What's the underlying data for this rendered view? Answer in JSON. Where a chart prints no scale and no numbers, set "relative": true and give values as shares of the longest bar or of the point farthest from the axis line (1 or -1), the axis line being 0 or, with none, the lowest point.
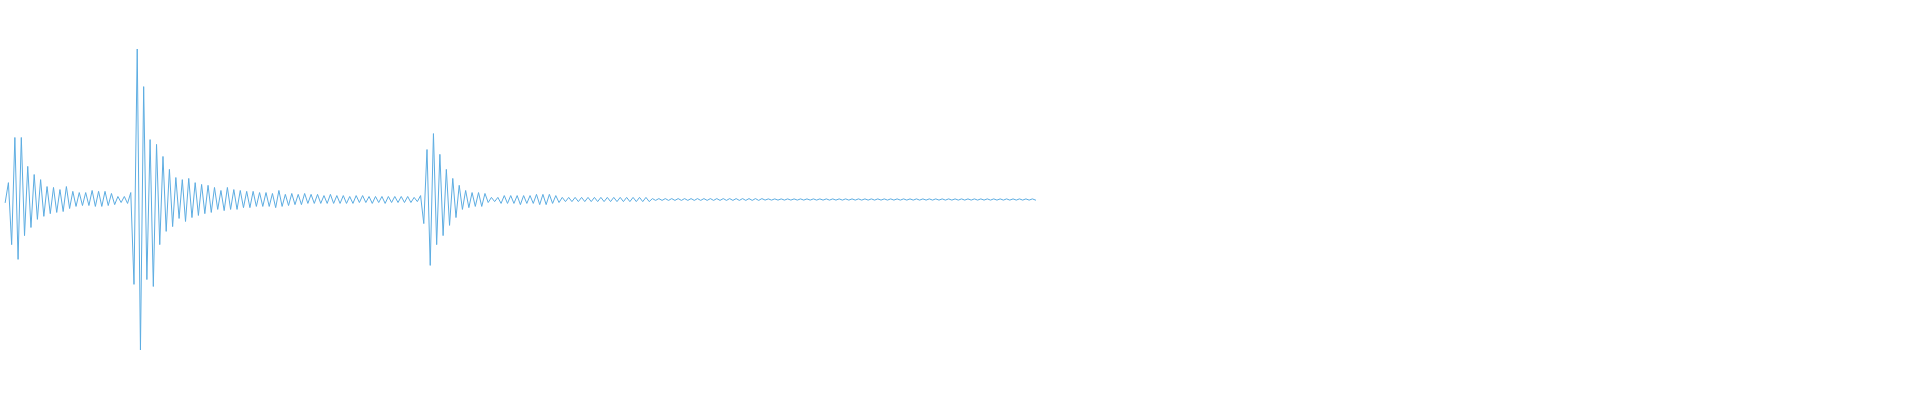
{
  "chart_data": {
    "type": "line",
    "relative": true,
    "line_style": "solid",
    "categories": [
      null,
      null,
      null,
      null,
      null,
      null,
      null,
      null,
      null,
      null,
      null,
      null,
      null,
      null,
      null,
      null,
      null,
      null,
      null,
      null,
      null,
      null,
      null,
      null,
      null,
      null,
      null,
      null,
      null,
      null,
      null,
      null,
      null,
      null,
      null,
      null,
      null,
      null,
      null,
      null,
      null,
      null,
      null,
      null,
      null,
      null,
      null,
      null,
      null,
      null,
      null,
      null,
      null,
      null,
      null,
      null,
      null,
      null,
      null,
      null,
      null,
      null,
      null,
      null,
      null,
      null,
      null,
      null,
      null,
      null,
      null,
      null,
      null,
      null,
      null,
      null,
      null,
      null,
      null,
      null,
      null,
      null,
      null,
      null,
      null,
      null,
      null,
      null,
      null,
      null,
      null,
      null,
      null,
      null,
      null,
      null,
      null,
      null,
      null,
      null,
      null,
      null,
      null,
      null,
      null,
      null,
      null,
      null,
      null,
      null,
      null,
      null,
      null,
      null,
      null,
      null,
      null,
      null,
      null,
      null,
      null,
      null,
      null,
      null,
      null,
      null,
      null,
      null,
      null,
      null,
      null,
      null,
      null,
      null,
      null,
      null,
      null,
      null,
      null,
      null,
      null,
      null,
      null,
      null,
      null,
      null,
      null,
      null,
      null,
      null,
      null,
      null,
      null,
      null,
      null,
      null,
      null,
      null,
      null,
      null,
      null,
      null,
      null,
      null,
      null,
      null,
      null,
      null,
      null,
      null,
      null,
      null,
      null,
      null,
      null,
      null,
      null,
      null,
      null,
      null,
      null,
      null,
      null,
      null,
      null,
      null,
      null,
      null,
      null,
      null,
      null,
      null,
      null,
      null,
      null,
      null,
      null,
      null,
      null,
      null,
      null,
      null,
      null,
      null,
      null,
      null,
      null,
      null,
      null,
      null,
      null,
      null,
      null,
      null,
      null,
      null,
      null,
      null,
      null,
      null,
      null,
      null,
      null,
      null,
      null,
      null,
      null,
      null,
      null,
      null,
      null,
      null,
      null,
      null,
      null,
      null,
      null,
      null,
      null,
      null,
      null,
      null,
      null,
      null,
      null,
      null,
      null,
      null,
      null,
      null,
      null,
      null,
      null,
      null,
      null,
      null,
      null,
      null,
      null,
      null,
      null,
      null,
      null,
      null,
      null,
      null,
      null,
      null,
      null,
      null,
      null,
      null,
      null,
      null,
      null,
      null,
      null,
      null,
      null,
      null,
      null,
      null,
      null,
      null,
      null,
      null,
      null,
      null,
      null,
      null,
      null,
      null,
      null,
      null,
      null,
      null,
      null,
      null,
      null,
      null,
      null,
      null,
      null,
      null,
      null,
      null,
      null,
      null,
      null,
      null,
      null,
      null,
      null,
      null,
      null,
      null,
      null,
      null,
      null,
      null,
      null
    ],
    "series": [
      {
        "color": "#5dade2",
        "values": [
          0.49,
          0.556,
          0.35,
          0.706,
          0.301,
          0.706,
          0.38,
          0.61,
          0.407,
          0.583,
          0.434,
          0.566,
          0.444,
          0.543,
          0.453,
          0.54,
          0.457,
          0.533,
          0.46,
          0.543,
          0.47,
          0.527,
          0.477,
          0.523,
          0.48,
          0.523,
          0.48,
          0.53,
          0.477,
          0.527,
          0.477,
          0.527,
          0.48,
          0.52,
          0.483,
          0.51,
          0.49,
          0.51,
          0.487,
          0.523,
          0.218,
          1,
          0,
          0.875,
          0.234,
          0.699,
          0.211,
          0.683,
          0.35,
          0.643,
          0.394,
          0.6,
          0.41,
          0.573,
          0.437,
          0.566,
          0.427,
          0.57,
          0.44,
          0.556,
          0.447,
          0.55,
          0.453,
          0.547,
          0.457,
          0.54,
          0.467,
          0.53,
          0.463,
          0.54,
          0.467,
          0.533,
          0.467,
          0.53,
          0.473,
          0.527,
          0.473,
          0.527,
          0.477,
          0.523,
          0.477,
          0.523,
          0.477,
          0.52,
          0.473,
          0.53,
          0.477,
          0.517,
          0.48,
          0.52,
          0.483,
          0.517,
          0.483,
          0.52,
          0.487,
          0.517,
          0.487,
          0.517,
          0.487,
          0.513,
          0.487,
          0.517,
          0.487,
          0.513,
          0.487,
          0.513,
          0.487,
          0.51,
          0.487,
          0.513,
          0.49,
          0.513,
          0.49,
          0.51,
          0.487,
          0.51,
          0.49,
          0.51,
          0.487,
          0.51,
          0.49,
          0.51,
          0.49,
          0.51,
          0.49,
          0.51,
          0.49,
          0.507,
          0.493,
          0.513,
          0.42,
          0.666,
          0.281,
          0.719,
          0.35,
          0.65,
          0.38,
          0.6,
          0.414,
          0.57,
          0.44,
          0.547,
          0.467,
          0.53,
          0.473,
          0.523,
          0.477,
          0.523,
          0.477,
          0.52,
          0.49,
          0.507,
          0.493,
          0.507,
          0.487,
          0.513,
          0.487,
          0.513,
          0.487,
          0.513,
          0.483,
          0.513,
          0.487,
          0.513,
          0.487,
          0.517,
          0.483,
          0.517,
          0.483,
          0.517,
          0.487,
          0.513,
          0.49,
          0.507,
          0.493,
          0.507,
          0.493,
          0.507,
          0.493,
          0.507,
          0.493,
          0.507,
          0.493,
          0.507,
          0.493,
          0.507,
          0.493,
          0.507,
          0.493,
          0.507,
          0.493,
          0.507,
          0.493,
          0.507,
          0.493,
          0.507,
          0.493,
          0.507,
          0.493,
          0.507,
          0.493,
          0.503,
          0.497,
          0.503,
          0.497,
          0.503,
          0.497,
          0.503,
          0.497,
          0.503,
          0.497,
          0.503,
          0.497,
          0.503,
          0.497,
          0.503,
          0.497,
          0.503,
          0.497,
          0.503,
          0.497,
          0.503,
          0.497,
          0.503,
          0.497,
          0.503,
          0.497,
          0.503,
          0.497,
          0.503,
          0.497,
          0.503,
          0.497,
          0.503,
          0.497,
          0.503,
          0.498,
          0.502,
          0.498,
          0.502,
          0.498,
          0.502,
          0.498,
          0.502,
          0.498,
          0.502,
          0.498,
          0.502,
          0.498,
          0.502,
          0.498,
          0.502,
          0.498,
          0.502,
          0.498,
          0.502,
          0.498,
          0.502,
          0.498,
          0.502,
          0.498,
          0.502,
          0.498,
          0.502,
          0.498,
          0.502,
          0.498,
          0.502,
          0.498,
          0.502,
          0.498,
          0.502,
          0.498,
          0.502,
          0.498,
          0.502,
          0.498,
          0.502,
          0.498,
          0.502,
          0.498,
          0.502,
          0.498,
          0.502,
          0.498,
          0.502,
          0.498,
          0.502,
          0.498,
          0.502,
          0.498,
          0.502,
          0.498,
          0.502,
          0.498,
          0.502,
          0.498,
          0.502,
          0.498,
          0.502,
          0.498,
          0.502,
          0.498,
          0.502,
          0.498,
          0.502,
          0.498,
          0.502,
          0.498,
          0.502,
          0.498,
          0.502,
          0.498,
          0.502,
          0.498,
          0.502,
          0.498,
          0.502,
          0.498,
          0.502,
          0.498
        ]
      }
    ]
  }
}
